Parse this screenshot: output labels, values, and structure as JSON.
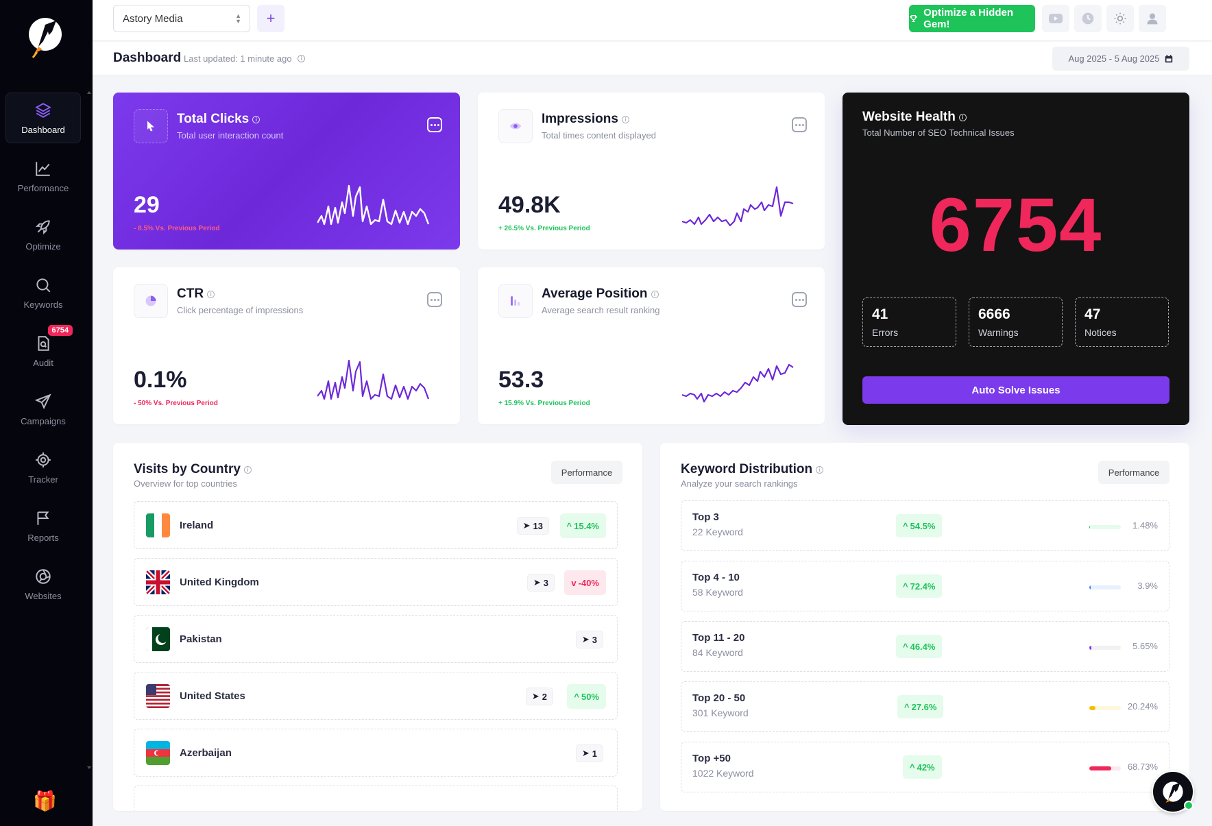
{
  "sidebar": {
    "items": [
      {
        "label": "Dashboard",
        "icon": "layers-icon"
      },
      {
        "label": "Performance",
        "icon": "chart-line-icon"
      },
      {
        "label": "Optimize",
        "icon": "rocket-icon"
      },
      {
        "label": "Keywords",
        "icon": "search-icon"
      },
      {
        "label": "Audit",
        "icon": "audit-icon",
        "badge": "6754"
      },
      {
        "label": "Campaigns",
        "icon": "paper-plane-icon"
      },
      {
        "label": "Tracker",
        "icon": "crosshair-icon"
      },
      {
        "label": "Reports",
        "icon": "flag-icon"
      },
      {
        "label": "Websites",
        "icon": "globe-icon"
      }
    ]
  },
  "topbar": {
    "site": "Astory Media",
    "optimize_label": "Optimize a Hidden Gem!"
  },
  "header": {
    "title": "Dashboard",
    "last_updated": "Last updated: 1 minute ago",
    "date_range": "Aug 2025 - 5 Aug 2025"
  },
  "metrics": {
    "clicks": {
      "title": "Total Clicks",
      "subtitle": "Total user interaction count",
      "value": "29",
      "change": "- 8.5% Vs. Previous Period"
    },
    "impressions": {
      "title": "Impressions",
      "subtitle": "Total times content displayed",
      "value": "49.8K",
      "change": "+ 26.5% Vs. Previous Period"
    },
    "ctr": {
      "title": "CTR",
      "subtitle": "Click percentage of impressions",
      "value": "0.1%",
      "change": "- 50% Vs. Previous Period"
    },
    "position": {
      "title": "Average Position",
      "subtitle": "Average search result ranking",
      "value": "53.3",
      "change": "+ 15.9% Vs. Previous Period"
    }
  },
  "health": {
    "title": "Website Health",
    "subtitle": "Total Number of SEO Technical Issues",
    "total": "6754",
    "errors": {
      "value": "41",
      "label": "Errors"
    },
    "warnings": {
      "value": "6666",
      "label": "Warnings"
    },
    "notices": {
      "value": "47",
      "label": "Notices"
    },
    "button": "Auto Solve Issues"
  },
  "countries": {
    "title": "Visits by Country",
    "subtitle": "Overview for top countries",
    "tag": "Performance",
    "rows": [
      {
        "name": "Ireland",
        "clicks": "13",
        "trend": "15.4%"
      },
      {
        "name": "United Kingdom",
        "clicks": "3",
        "trend": "-40%"
      },
      {
        "name": "Pakistan",
        "clicks": "3"
      },
      {
        "name": "United States",
        "clicks": "2",
        "trend": "50%"
      },
      {
        "name": "Azerbaijan",
        "clicks": "1"
      }
    ]
  },
  "keywords": {
    "title": "Keyword Distribution",
    "subtitle": "Analyze your search rankings",
    "tag": "Performance",
    "rows": [
      {
        "name": "Top 3",
        "count": "22 Keyword",
        "trend": "54.5%",
        "pct": "1.48%",
        "fill": 0.0148,
        "color": "#1ec45a",
        "track": "#e5fbec"
      },
      {
        "name": "Top 4 - 10",
        "count": "58 Keyword",
        "trend": "72.4%",
        "pct": "3.9%",
        "fill": 0.039,
        "color": "#3b82f6",
        "track": "#e7f0fd"
      },
      {
        "name": "Top 11 - 20",
        "count": "84 Keyword",
        "trend": "46.4%",
        "pct": "5.65%",
        "fill": 0.0565,
        "color": "#7c3aed",
        "track": "#f1f1f4"
      },
      {
        "name": "Top 20 - 50",
        "count": "301 Keyword",
        "trend": "27.6%",
        "pct": "20.24%",
        "fill": 0.2024,
        "color": "#f5c000",
        "track": "#fdf7db"
      },
      {
        "name": "Top +50",
        "count": "1022 Keyword",
        "trend": "42%",
        "pct": "68.73%",
        "fill": 0.6873,
        "color": "#f0275b",
        "track": "#fde8ee"
      }
    ]
  }
}
